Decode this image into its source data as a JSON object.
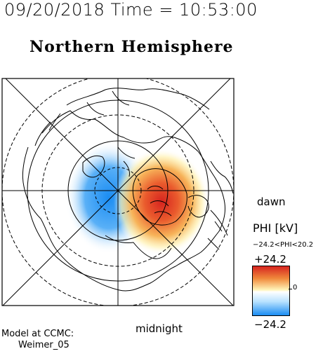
{
  "header": {
    "timestamp": "09/20/2018 Time = 10:53:00"
  },
  "plot": {
    "title": "Northern Hemisphere",
    "label_dawn": "dawn",
    "label_midnight": "midnight"
  },
  "colorbar": {
    "title": "PHI [kV]",
    "range_text": "−24.2<PHI<20.2",
    "max_label": "+24.2",
    "min_label": "−24.2",
    "zero_label": "0",
    "colors": {
      "max": "#d6241f",
      "mid": "#ffffff",
      "min": "#1a8cf2"
    }
  },
  "credit": {
    "line1": "Model at CCMC:",
    "line2": "Weimer_05"
  }
}
